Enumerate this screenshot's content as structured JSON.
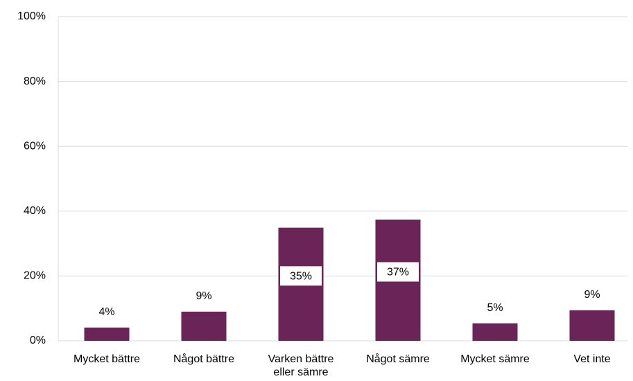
{
  "chart_data": {
    "type": "bar",
    "categories": [
      "Mycket bättre",
      "Något bättre",
      "Varken bättre eller sämre",
      "Något sämre",
      "Mycket sämre",
      "Vet inte"
    ],
    "values": [
      4.1,
      9.0,
      34.9,
      37.4,
      5.4,
      9.4
    ],
    "value_labels": [
      "4%",
      "9%",
      "35%",
      "37%",
      "5%",
      "9%"
    ],
    "color": "#6b2457",
    "ylim": [
      0,
      100
    ],
    "yticks": [
      {
        "value": 0,
        "label": "0%"
      },
      {
        "value": 20,
        "label": "20%"
      },
      {
        "value": 40,
        "label": "40%"
      },
      {
        "value": 60,
        "label": "60%"
      },
      {
        "value": 80,
        "label": "80%"
      },
      {
        "value": 100,
        "label": "100%"
      }
    ],
    "grid": true
  }
}
